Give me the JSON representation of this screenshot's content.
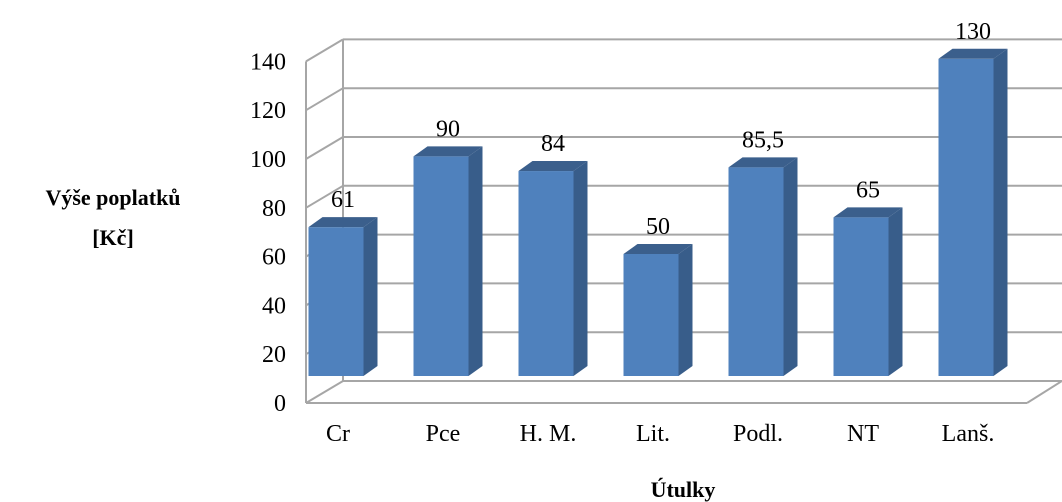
{
  "chart_data": {
    "type": "bar",
    "style": "3d-column",
    "categories": [
      "Cr",
      "Pce",
      "H. M.",
      "Lit.",
      "Podl.",
      "NT",
      "Lanš."
    ],
    "values": [
      61,
      90,
      84,
      50,
      85.5,
      65,
      130
    ],
    "data_labels": [
      "61",
      "90",
      "84",
      "50",
      "85,5",
      "65",
      "130"
    ],
    "yticks": [
      0,
      20,
      40,
      60,
      80,
      100,
      120,
      140
    ],
    "ylim": [
      0,
      140
    ],
    "ylabel_lines": [
      "Výše poplatků",
      "[Kč]"
    ],
    "xlabel": "Útulky",
    "grid": true,
    "legend": "none",
    "colors": {
      "bar_front": "#4F81BD",
      "bar_side": "#385D8A",
      "bar_top": "#3B5F8C",
      "grid": "#A6A6A6"
    }
  }
}
